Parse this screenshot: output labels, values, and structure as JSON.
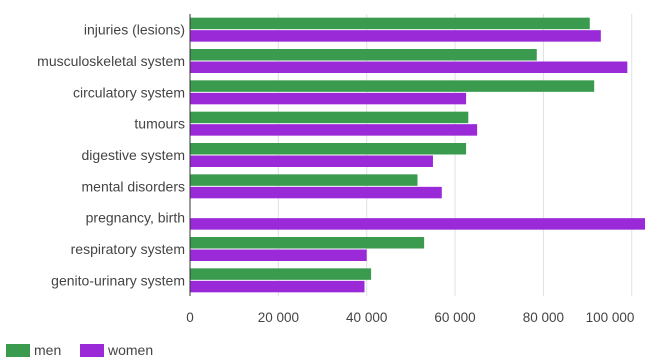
{
  "chart_data": {
    "type": "bar",
    "orientation": "horizontal",
    "title": "",
    "xlabel": "",
    "ylabel": "",
    "categories": [
      "injuries (lesions)",
      "musculoskeletal system",
      "circulatory system",
      "tumours",
      "digestive system",
      "mental disorders",
      "pregnancy, birth",
      "respiratory system",
      "genito-urinary system"
    ],
    "series": [
      {
        "name": "men",
        "color": "#3a9b4f",
        "values": [
          90500,
          78500,
          91500,
          63000,
          62500,
          51500,
          0,
          53000,
          41000
        ]
      },
      {
        "name": "women",
        "color": "#9a2ad8",
        "values": [
          93000,
          99000,
          62500,
          65000,
          55000,
          57000,
          103000,
          40000,
          39500
        ]
      }
    ],
    "xlim": [
      0,
      103000
    ],
    "xticks": [
      0,
      20000,
      40000,
      60000,
      80000,
      100000
    ],
    "xtick_labels": [
      "0",
      "20 000",
      "40 000",
      "60 000",
      "80 000",
      "100 000"
    ],
    "grid": true,
    "legend": "bottom-left"
  }
}
